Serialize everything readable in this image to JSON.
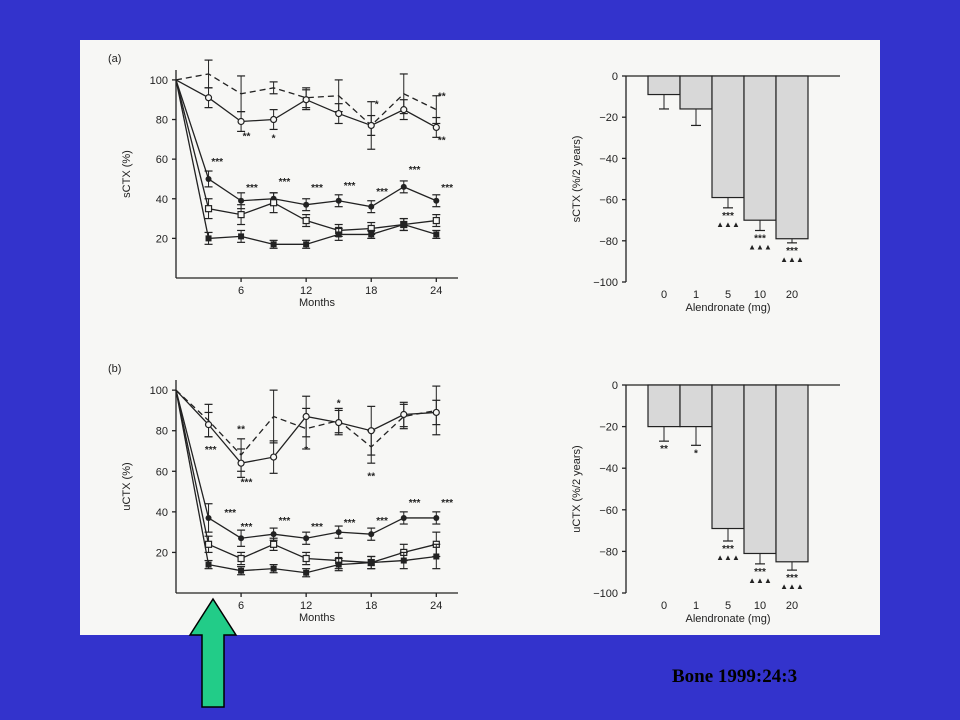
{
  "citation": "Bone 1999:24:3",
  "colors": {
    "background": "#3333cc",
    "arrow": "#22cc88",
    "bar": "#d8d8d8"
  },
  "arrow_icon": "up-arrow-icon",
  "chart_data": [
    {
      "type": "line",
      "panel": "(a)",
      "ylabel": "sCTX (%)",
      "xlabel": "Months",
      "xlim": [
        0,
        26
      ],
      "ylim": [
        0,
        105
      ],
      "xticks": [
        6,
        12,
        18,
        24
      ],
      "yticks": [
        20,
        40,
        60,
        80,
        100
      ],
      "series": [
        {
          "style": "dashed",
          "marker": "none",
          "x": [
            0,
            3,
            6,
            9,
            12,
            15,
            18,
            21,
            24
          ],
          "y": [
            100,
            103,
            93,
            96,
            91,
            92,
            77,
            93,
            85
          ],
          "err": [
            0,
            7,
            9,
            3,
            5,
            8,
            5,
            10,
            7
          ]
        },
        {
          "style": "solid",
          "marker": "open-circle",
          "x": [
            0,
            3,
            6,
            9,
            12,
            15,
            18,
            21,
            24
          ],
          "y": [
            100,
            91,
            79,
            80,
            90,
            83,
            77,
            85,
            76
          ],
          "err": [
            0,
            5,
            5,
            5,
            5,
            5,
            12,
            5,
            5
          ]
        },
        {
          "style": "solid",
          "marker": "filled-circle",
          "x": [
            0,
            3,
            6,
            9,
            12,
            15,
            18,
            21,
            24
          ],
          "y": [
            100,
            50,
            39,
            40,
            37,
            39,
            36,
            46,
            39
          ],
          "err": [
            0,
            4,
            4,
            3,
            3,
            3,
            3,
            3,
            3
          ]
        },
        {
          "style": "solid",
          "marker": "open-square",
          "x": [
            0,
            3,
            6,
            9,
            12,
            15,
            18,
            21,
            24
          ],
          "y": [
            100,
            35,
            32,
            38,
            29,
            24,
            25,
            27,
            29
          ],
          "err": [
            0,
            5,
            5,
            5,
            3,
            3,
            3,
            3,
            3
          ]
        },
        {
          "style": "solid",
          "marker": "filled-square",
          "x": [
            0,
            3,
            6,
            9,
            12,
            15,
            18,
            21,
            24
          ],
          "y": [
            100,
            20,
            21,
            17,
            17,
            22,
            22,
            27,
            22
          ],
          "err": [
            0,
            3,
            3,
            2,
            2,
            3,
            2,
            3,
            2
          ]
        }
      ],
      "annotations": [
        {
          "text": "**",
          "x": 24.5,
          "y": 90
        },
        {
          "text": "*",
          "x": 18.5,
          "y": 86
        },
        {
          "text": "**",
          "x": 6.5,
          "y": 70
        },
        {
          "text": "*",
          "x": 9,
          "y": 69
        },
        {
          "text": "**",
          "x": 24.5,
          "y": 68
        },
        {
          "text": "***",
          "x": 3.8,
          "y": 57
        },
        {
          "text": "***",
          "x": 7,
          "y": 44
        },
        {
          "text": "***",
          "x": 10,
          "y": 47
        },
        {
          "text": "***",
          "x": 13,
          "y": 44
        },
        {
          "text": "***",
          "x": 16,
          "y": 45
        },
        {
          "text": "***",
          "x": 19,
          "y": 42
        },
        {
          "text": "***",
          "x": 22,
          "y": 53
        },
        {
          "text": "***",
          "x": 25,
          "y": 44
        }
      ]
    },
    {
      "type": "bar",
      "ylabel": "sCTX (%/2 years)",
      "xlabel": "Alendronate (mg)",
      "categories": [
        "0",
        "1",
        "5",
        "10",
        "20"
      ],
      "values": [
        -9,
        -16,
        -59,
        -70,
        -79
      ],
      "err": [
        7,
        8,
        5,
        5,
        2
      ],
      "ylim": [
        -100,
        0
      ],
      "yticks": [
        0,
        -20,
        -40,
        -60,
        -80,
        -100
      ],
      "annotations": [
        {
          "category": "5",
          "text": "***",
          "sub": "▲▲▲"
        },
        {
          "category": "10",
          "text": "***",
          "sub": "▲▲▲"
        },
        {
          "category": "20",
          "text": "***",
          "sub": "▲▲▲"
        }
      ]
    },
    {
      "type": "line",
      "panel": "(b)",
      "ylabel": "uCTX (%)",
      "xlabel": "Months",
      "xlim": [
        0,
        26
      ],
      "ylim": [
        0,
        105
      ],
      "xticks": [
        6,
        12,
        18,
        24
      ],
      "yticks": [
        20,
        40,
        60,
        80,
        100
      ],
      "series": [
        {
          "style": "dashed",
          "marker": "none",
          "x": [
            0,
            3,
            6,
            9,
            12,
            15,
            18,
            21,
            24
          ],
          "y": [
            100,
            85,
            68,
            87,
            81,
            85,
            72,
            87,
            90
          ],
          "err": [
            0,
            8,
            8,
            13,
            10,
            6,
            8,
            6,
            12
          ]
        },
        {
          "style": "solid",
          "marker": "open-circle",
          "x": [
            0,
            3,
            6,
            9,
            12,
            15,
            18,
            21,
            24
          ],
          "y": [
            100,
            83,
            64,
            67,
            87,
            84,
            80,
            88,
            89
          ],
          "err": [
            0,
            6,
            7,
            8,
            10,
            6,
            12,
            6,
            6
          ]
        },
        {
          "style": "solid",
          "marker": "filled-circle",
          "x": [
            0,
            3,
            6,
            9,
            12,
            15,
            18,
            21,
            24
          ],
          "y": [
            100,
            37,
            27,
            29,
            27,
            30,
            29,
            37,
            37
          ],
          "err": [
            0,
            7,
            4,
            3,
            3,
            3,
            3,
            3,
            3
          ]
        },
        {
          "style": "solid",
          "marker": "open-square",
          "x": [
            0,
            3,
            6,
            9,
            12,
            15,
            18,
            21,
            24
          ],
          "y": [
            100,
            24,
            17,
            24,
            17,
            16,
            15,
            20,
            24
          ],
          "err": [
            0,
            4,
            3,
            3,
            3,
            4,
            3,
            4,
            6
          ]
        },
        {
          "style": "solid",
          "marker": "filled-square",
          "x": [
            0,
            3,
            6,
            9,
            12,
            15,
            18,
            21,
            24
          ],
          "y": [
            100,
            14,
            11,
            12,
            10,
            14,
            15,
            16,
            18
          ],
          "err": [
            0,
            2,
            2,
            2,
            2,
            3,
            3,
            4,
            6
          ]
        }
      ],
      "annotations": [
        {
          "text": "*",
          "x": 15,
          "y": 92
        },
        {
          "text": "**",
          "x": 6,
          "y": 79
        },
        {
          "text": "***",
          "x": 3.2,
          "y": 69
        },
        {
          "text": "*",
          "x": 12,
          "y": 69
        },
        {
          "text": "**",
          "x": 18,
          "y": 56
        },
        {
          "text": "***",
          "x": 6.5,
          "y": 53
        },
        {
          "text": "***",
          "x": 5,
          "y": 38
        },
        {
          "text": "***",
          "x": 6.5,
          "y": 31
        },
        {
          "text": "***",
          "x": 10,
          "y": 34
        },
        {
          "text": "***",
          "x": 13,
          "y": 31
        },
        {
          "text": "***",
          "x": 16,
          "y": 33
        },
        {
          "text": "***",
          "x": 19,
          "y": 34
        },
        {
          "text": "***",
          "x": 22,
          "y": 43
        },
        {
          "text": "***",
          "x": 25,
          "y": 43
        }
      ]
    },
    {
      "type": "bar",
      "ylabel": "uCTX (%/2 years)",
      "xlabel": "Alendronate (mg)",
      "categories": [
        "0",
        "1",
        "5",
        "10",
        "20"
      ],
      "values": [
        -20,
        -20,
        -69,
        -81,
        -85
      ],
      "err": [
        7,
        9,
        6,
        5,
        4
      ],
      "ylim": [
        -100,
        0
      ],
      "yticks": [
        0,
        -20,
        -40,
        -60,
        -80,
        -100
      ],
      "annotations": [
        {
          "category": "0",
          "text": "**",
          "sub": ""
        },
        {
          "category": "1",
          "text": "*",
          "sub": ""
        },
        {
          "category": "5",
          "text": "***",
          "sub": "▲▲▲"
        },
        {
          "category": "10",
          "text": "***",
          "sub": "▲▲▲"
        },
        {
          "category": "20",
          "text": "***",
          "sub": "▲▲▲"
        }
      ]
    }
  ]
}
